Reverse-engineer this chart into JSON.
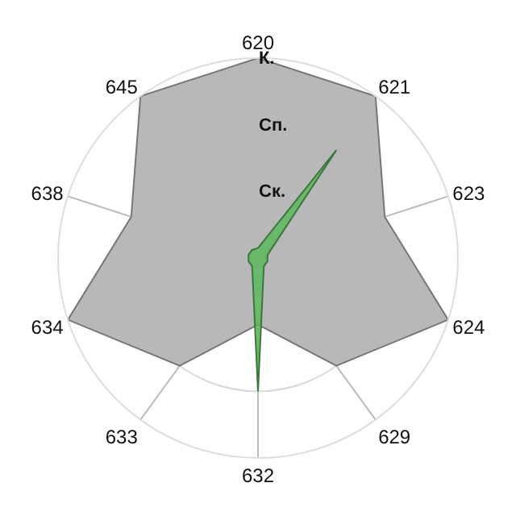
{
  "chart_data": {
    "type": "radar",
    "categories": [
      "620",
      "621",
      "623",
      "624",
      "629",
      "632",
      "633",
      "634",
      "638",
      "645"
    ],
    "series": [
      {
        "color": "#b8b8b8",
        "values": [
          3,
          3,
          2,
          3,
          2,
          1,
          2,
          3,
          2,
          3
        ]
      },
      {
        "color": "#5cb85c",
        "values": [
          0.15,
          2,
          0.15,
          0.15,
          0.15,
          2,
          0.15,
          0.15,
          0.15,
          0.15
        ]
      }
    ],
    "ylim": [
      0,
      3
    ],
    "yticks": [
      {
        "value": 1,
        "label": "Ск."
      },
      {
        "value": 2,
        "label": "Сп."
      },
      {
        "value": 3,
        "label": "К."
      }
    ],
    "grid": true
  }
}
